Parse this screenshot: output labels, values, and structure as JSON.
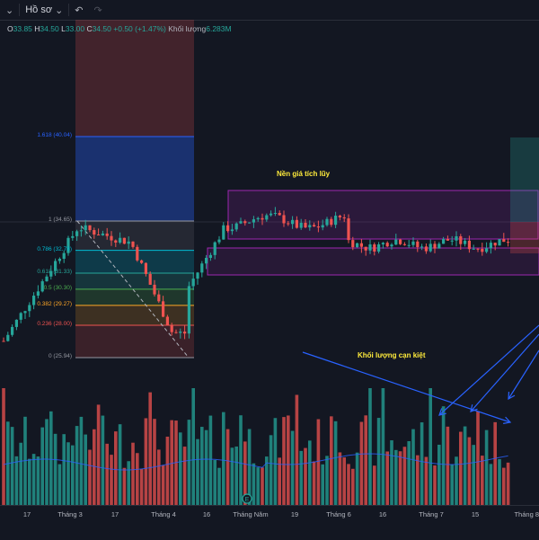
{
  "toolbar": {
    "profile_label": "Hồ sơ",
    "profile_chevron": "chevron-down-icon",
    "undo_icon": "undo-icon",
    "redo_icon": "redo-icon"
  },
  "ohlc": {
    "o_key": "O",
    "o_val": "33.85",
    "h_key": "H",
    "h_val": "34.50",
    "l_key": "L",
    "l_val": "33.00",
    "c_key": "C",
    "c_val": "34.50",
    "change": "+0.50 (+1.47%)",
    "volume_label": "Khối lượng",
    "volume_val": "6.283M"
  },
  "annotations": {
    "accumulation": "Nền giá tích lũy",
    "volume_exhausted": "Khối lượng cạn kiệt"
  },
  "colors": {
    "up": "#26a69a",
    "down": "#ef5350",
    "fib_1618": "#2962ff",
    "fib_0786": "#00bcd4",
    "fib_0382": "#ffa726",
    "fib_0236": "#ef5350",
    "rect_purple": "#9c27b0",
    "arrow_blue": "#2962ff",
    "ma_line": "#2962ff"
  },
  "fib_levels": [
    {
      "label": "1.618 (40.04)",
      "color": "#2962ff"
    },
    {
      "label": "1 (34.65)",
      "color": "#9598a1"
    },
    {
      "label": "0.786 (32.78)",
      "color": "#00bcd4"
    },
    {
      "label": "0.618 (31.33)",
      "color": "#26a69a"
    },
    {
      "label": "0.5 (30.30)",
      "color": "#4caf50"
    },
    {
      "label": "0.382 (29.27)",
      "color": "#ffa726"
    },
    {
      "label": "0.236 (28.00)",
      "color": "#ef5350"
    },
    {
      "label": "0 (25.94)",
      "color": "#9598a1"
    }
  ],
  "x_axis": {
    "labels": [
      "17",
      "Tháng 3",
      "17",
      "Tháng 4",
      "16",
      "Tháng Năm",
      "19",
      "Tháng 6",
      "16",
      "Tháng 7",
      "15",
      "Tháng 8"
    ]
  },
  "event_marker": "E",
  "chart_data": {
    "type": "candlestick",
    "price_levels": {
      "fib_0": 25.94,
      "fib_0236": 28.0,
      "fib_0382": 29.27,
      "fib_05": 30.3,
      "fib_0618": 31.33,
      "fib_0786": 32.78,
      "fib_1": 34.65,
      "fib_1618": 40.04
    },
    "last": {
      "open": 33.85,
      "high": 34.5,
      "low": 33.0,
      "close": 34.5,
      "volume": "6.283M"
    }
  }
}
